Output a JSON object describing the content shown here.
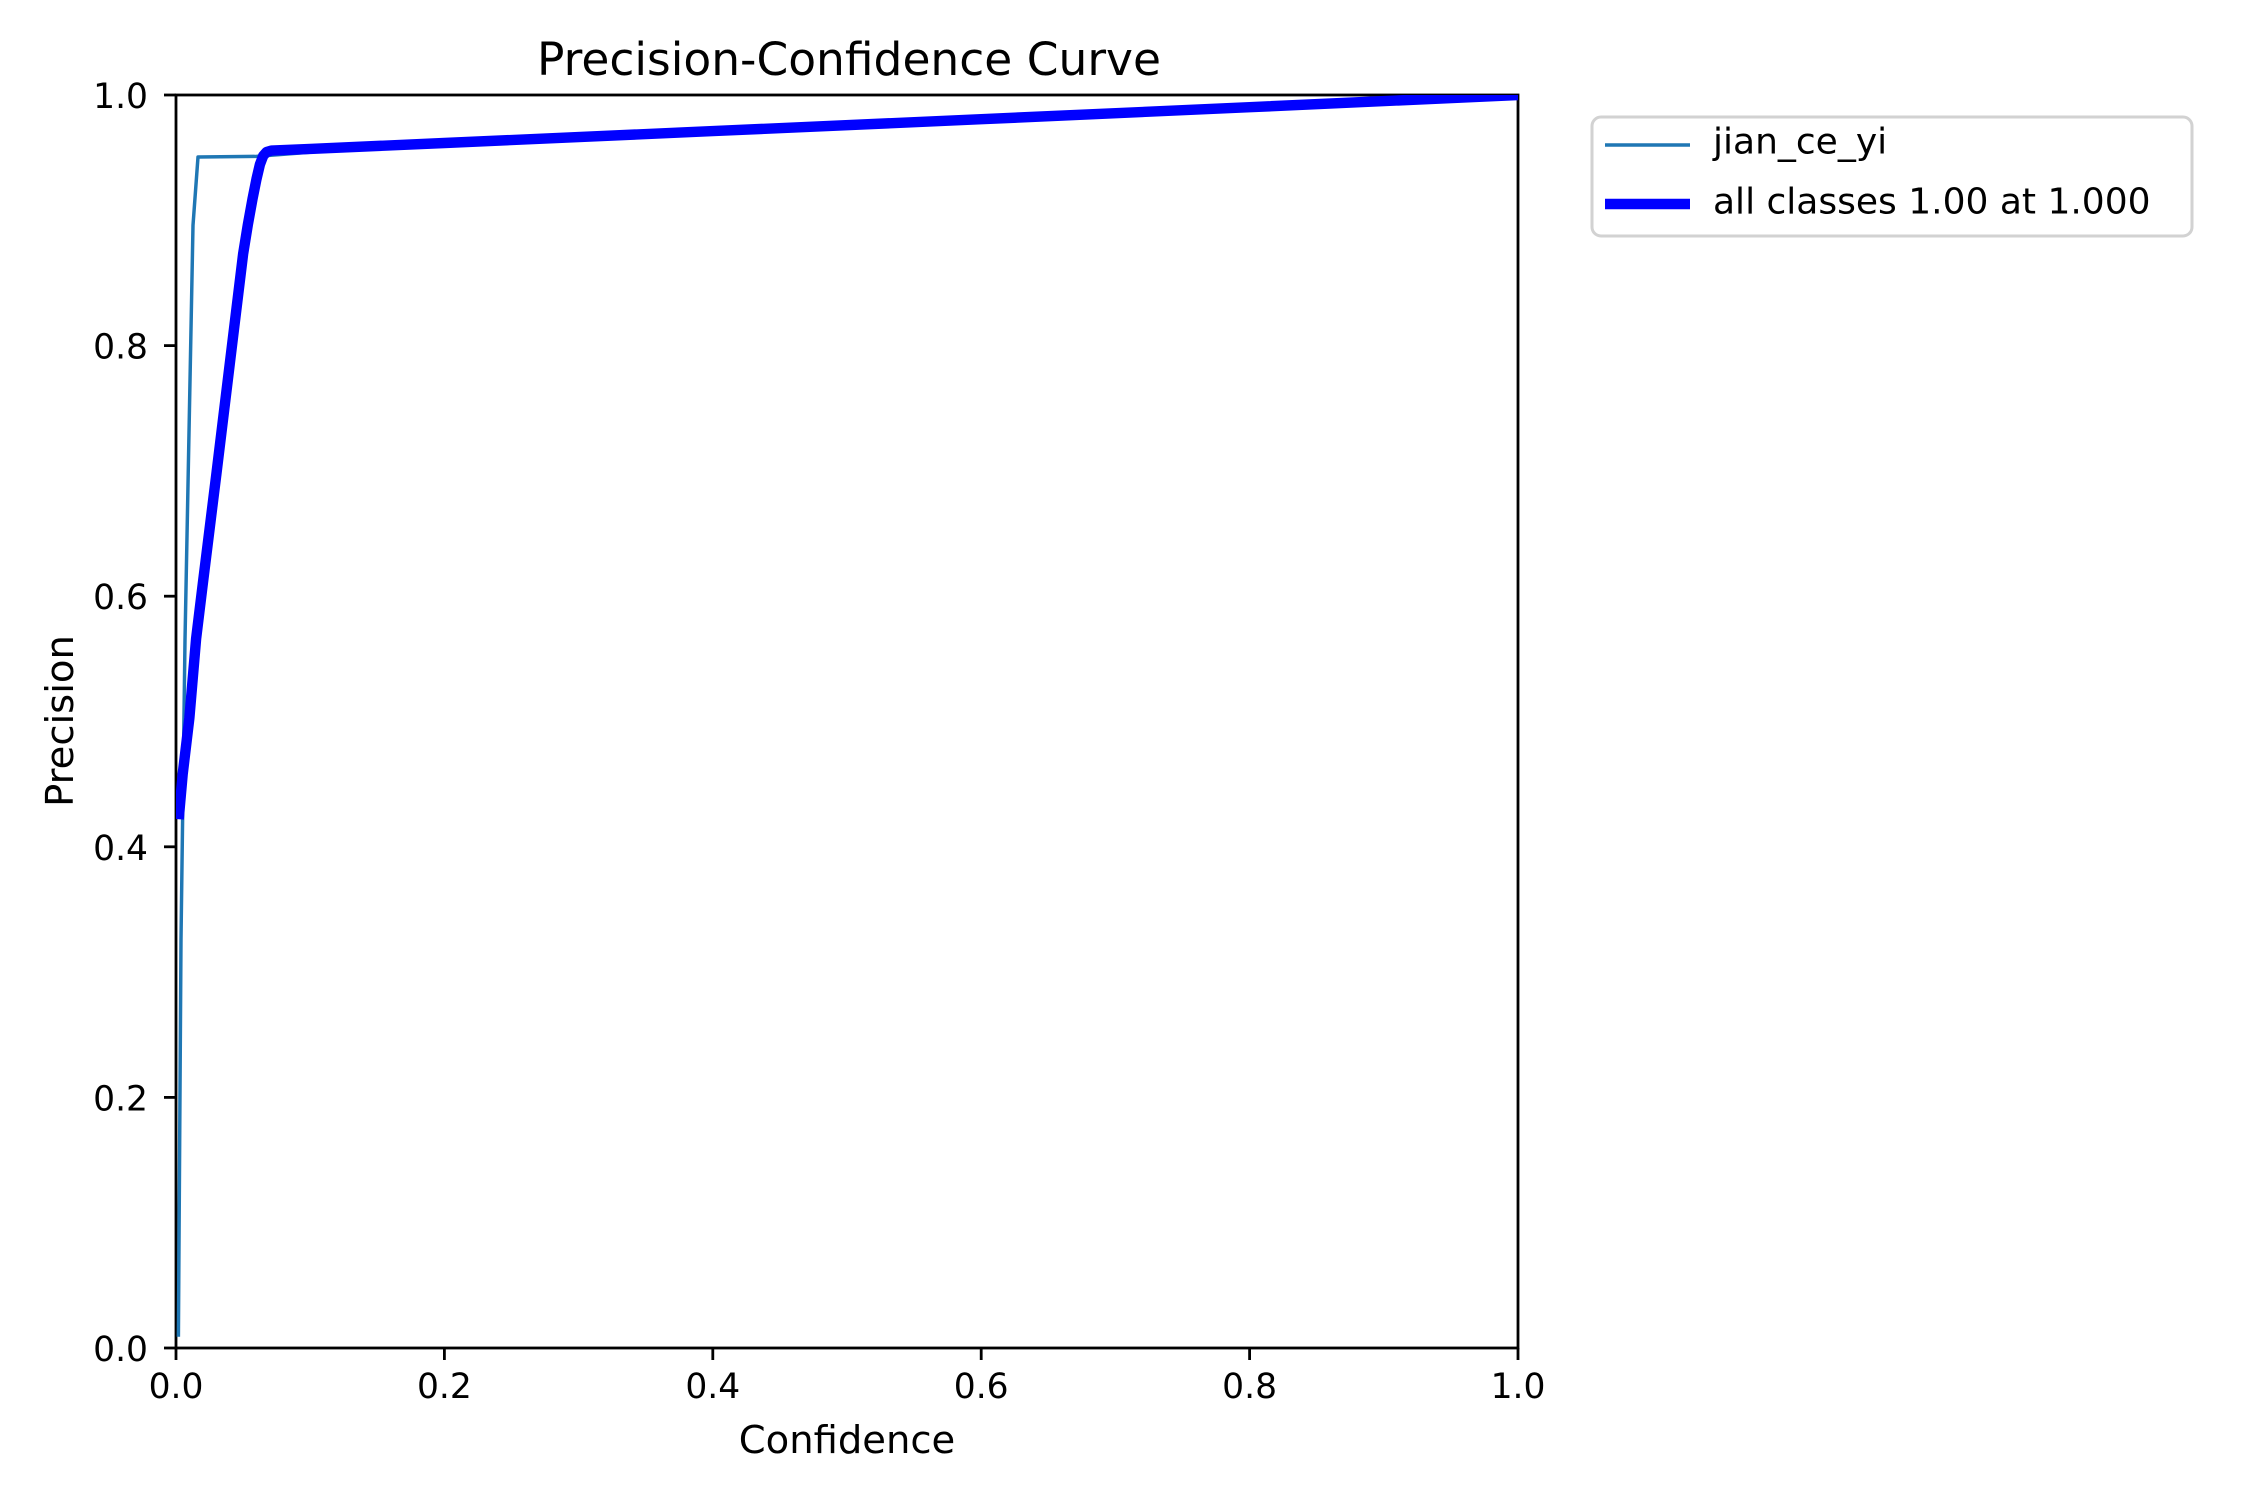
{
  "chart_data": {
    "type": "line",
    "title": "Precision-Confidence Curve",
    "xlabel": "Confidence",
    "ylabel": "Precision",
    "xlim": [
      0.0,
      1.0
    ],
    "ylim": [
      0.0,
      1.0
    ],
    "xtick_labels": [
      "0.0",
      "0.2",
      "0.4",
      "0.6",
      "0.8",
      "1.0"
    ],
    "ytick_labels": [
      "0.0",
      "0.2",
      "0.4",
      "0.6",
      "0.8",
      "1.0"
    ],
    "grid": false,
    "legend_position": "outside upper right",
    "series": [
      {
        "name": "jian_ce_yi",
        "color": "#1f77b4",
        "line_width_pt": 1,
        "x": [
          0.0018,
          0.0037,
          0.0067,
          0.0127,
          0.0164,
          0.06,
          0.12,
          0.3,
          0.6,
          0.9,
          1.0
        ],
        "y": [
          0.009,
          0.326,
          0.565,
          0.896,
          0.9505,
          0.951,
          0.956,
          0.9655,
          0.9795,
          0.9935,
          1.0
        ]
      },
      {
        "name": "all classes 1.00 at 1.000",
        "color": "#0000ff",
        "line_width_pt": 3,
        "x": [
          0.002,
          0.005,
          0.01,
          0.015,
          0.02,
          0.03,
          0.04,
          0.05,
          0.0535,
          0.057,
          0.06,
          0.0625,
          0.065,
          0.0675,
          0.071,
          0.1,
          0.2,
          0.4,
          0.6,
          0.8,
          1.0
        ],
        "y": [
          0.422,
          0.458,
          0.503,
          0.566,
          0.61,
          0.697,
          0.785,
          0.873,
          0.8963,
          0.917,
          0.933,
          0.9445,
          0.9515,
          0.9545,
          0.9556,
          0.957,
          0.9617,
          0.9712,
          0.9807,
          0.9903,
          1.0
        ]
      }
    ]
  }
}
